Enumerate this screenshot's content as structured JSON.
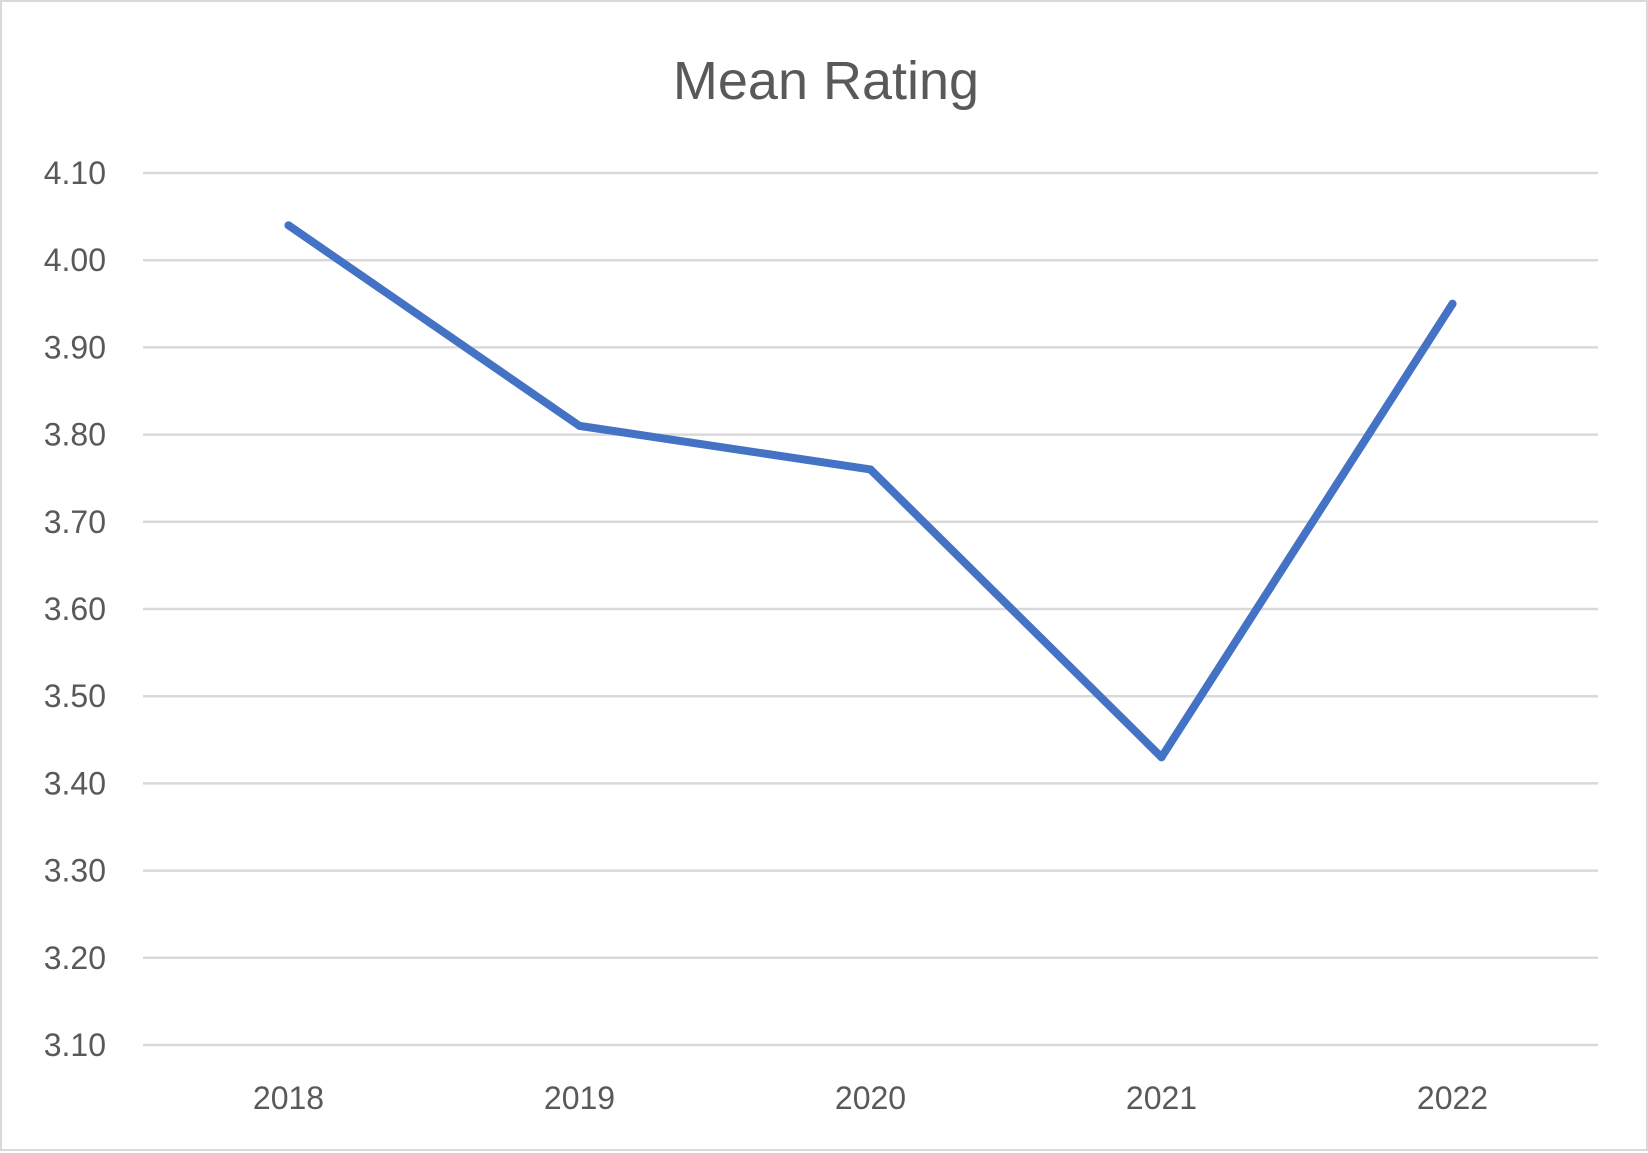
{
  "chart_data": {
    "type": "line",
    "title": "Mean Rating",
    "xlabel": "",
    "ylabel": "",
    "categories": [
      "2018",
      "2019",
      "2020",
      "2021",
      "2022"
    ],
    "series": [
      {
        "name": "Mean Rating",
        "values": [
          4.04,
          3.81,
          3.76,
          3.43,
          3.95
        ],
        "color": "#4472C4"
      }
    ],
    "ylim": [
      3.1,
      4.1
    ],
    "yticks": [
      "3.10",
      "3.20",
      "3.30",
      "3.40",
      "3.50",
      "3.60",
      "3.70",
      "3.80",
      "3.90",
      "4.00",
      "4.10"
    ],
    "grid": true,
    "legend": "none"
  }
}
